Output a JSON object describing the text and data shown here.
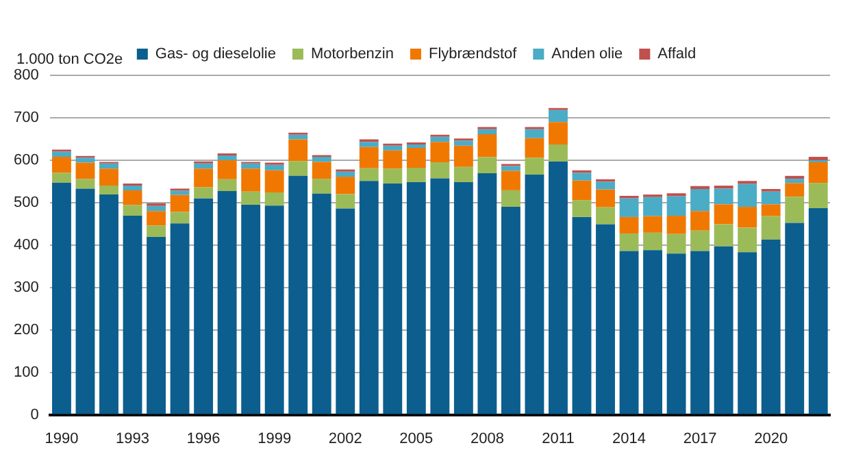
{
  "chart_data": {
    "type": "bar",
    "stacked": true,
    "ylabel": "1.000 ton CO2e",
    "categories": [
      "1990",
      null,
      null,
      "1993",
      null,
      null,
      "1996",
      null,
      null,
      "1999",
      null,
      null,
      "2002",
      null,
      null,
      "2005",
      null,
      null,
      "2008",
      null,
      null,
      "2011",
      null,
      null,
      "2014",
      null,
      null,
      "2017",
      null,
      null,
      "2020",
      null,
      null
    ],
    "series": [
      {
        "name": "Gas- og dieselolie",
        "color": "#0b5e8e",
        "values": [
          547,
          533,
          519,
          469,
          419,
          451,
          510,
          527,
          495,
          493,
          563,
          521,
          486,
          551,
          545,
          548,
          557,
          548,
          569,
          490,
          566,
          597,
          466,
          449,
          386,
          388,
          380,
          386,
          397,
          383,
          413,
          452,
          487
        ]
      },
      {
        "name": "Motorbenzin",
        "color": "#9bbb59",
        "values": [
          23,
          23,
          21,
          25,
          27,
          27,
          26,
          28,
          31,
          31,
          35,
          35,
          34,
          30,
          35,
          34,
          38,
          36,
          38,
          39,
          40,
          40,
          40,
          40,
          41,
          41,
          46,
          48,
          52,
          58,
          55,
          62,
          59
        ]
      },
      {
        "name": "Flybrændstof",
        "color": "#f07800",
        "values": [
          38,
          38,
          40,
          35,
          34,
          40,
          44,
          45,
          54,
          52,
          51,
          40,
          41,
          50,
          43,
          47,
          48,
          50,
          54,
          46,
          46,
          53,
          46,
          42,
          39,
          39,
          43,
          46,
          47,
          49,
          28,
          32,
          49
        ]
      },
      {
        "name": "Anden olie",
        "color": "#4bacc6",
        "values": [
          12,
          12,
          12,
          11,
          12,
          10,
          12,
          11,
          12,
          13,
          11,
          12,
          12,
          12,
          11,
          8,
          12,
          12,
          12,
          11,
          21,
          28,
          18,
          18,
          44,
          45,
          46,
          52,
          37,
          54,
          30,
          10,
          5
        ]
      },
      {
        "name": "Affald",
        "color": "#c0504d",
        "values": [
          5,
          4,
          4,
          5,
          6,
          5,
          5,
          5,
          4,
          5,
          5,
          4,
          5,
          6,
          5,
          5,
          5,
          5,
          5,
          5,
          5,
          5,
          6,
          6,
          6,
          6,
          7,
          7,
          7,
          7,
          6,
          7,
          8
        ]
      }
    ],
    "ylim": [
      0,
      800
    ],
    "yticks": [
      0,
      100,
      200,
      300,
      400,
      500,
      600,
      700,
      800
    ],
    "grid": "y",
    "legend": "top"
  }
}
